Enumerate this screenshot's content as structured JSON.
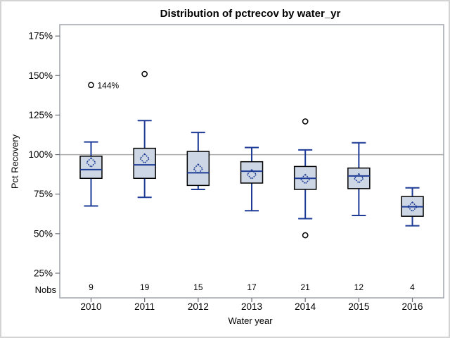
{
  "chart_data": {
    "type": "boxplot",
    "title": "Distribution of pctrecov by water_yr",
    "xlabel": "Water year",
    "ylabel": "Pct Recovery",
    "nobs_label": "Nobs",
    "categories": [
      "2010",
      "2011",
      "2012",
      "2013",
      "2014",
      "2015",
      "2016"
    ],
    "nobs": [
      9,
      19,
      15,
      17,
      21,
      12,
      4
    ],
    "y_ticks": [
      25,
      50,
      75,
      100,
      125,
      150,
      175
    ],
    "y_tick_suffix": "%",
    "ylim": [
      9.4,
      182.2
    ],
    "reference_line": 100,
    "grid": false,
    "series": [
      {
        "category": "2010",
        "n": 9,
        "whisker_low": 67.5,
        "q1": 85,
        "median": 90.5,
        "mean": 95,
        "q3": 99,
        "whisker_high": 108,
        "outliers": [
          144
        ]
      },
      {
        "category": "2011",
        "n": 19,
        "whisker_low": 73,
        "q1": 85,
        "median": 93.5,
        "mean": 97.5,
        "q3": 104,
        "whisker_high": 121.5,
        "outliers": [
          151
        ]
      },
      {
        "category": "2012",
        "n": 15,
        "whisker_low": 78,
        "q1": 80.5,
        "median": 88.5,
        "mean": 91,
        "q3": 102,
        "whisker_high": 114,
        "outliers": []
      },
      {
        "category": "2013",
        "n": 17,
        "whisker_low": 64.5,
        "q1": 82,
        "median": 89.5,
        "mean": 87.5,
        "q3": 95.5,
        "whisker_high": 104.5,
        "outliers": []
      },
      {
        "category": "2014",
        "n": 21,
        "whisker_low": 59.5,
        "q1": 78,
        "median": 85,
        "mean": 84.5,
        "q3": 92.5,
        "whisker_high": 103,
        "outliers": [
          121,
          49
        ]
      },
      {
        "category": "2015",
        "n": 12,
        "whisker_low": 61.5,
        "q1": 78.5,
        "median": 86.5,
        "mean": 85,
        "q3": 91.5,
        "whisker_high": 107.5,
        "outliers": []
      },
      {
        "category": "2016",
        "n": 4,
        "whisker_low": 55,
        "q1": 61,
        "median": 67,
        "mean": 67,
        "q3": 73.5,
        "whisker_high": 79,
        "outliers": []
      }
    ],
    "annotations": [
      {
        "category": "2010",
        "value": 144,
        "label": "144%"
      }
    ],
    "colors": {
      "box_fill": "#ccd6e4",
      "box_border": "#000000",
      "line_blue": "#1e3c96",
      "reference_line": "#ababab",
      "frame": "#a0a5ab",
      "tick": "#6b6f75",
      "text": "#000000",
      "outlier_stroke": "#000000",
      "canvas_border": "#d4d4d4",
      "background": "#ffffff"
    }
  }
}
